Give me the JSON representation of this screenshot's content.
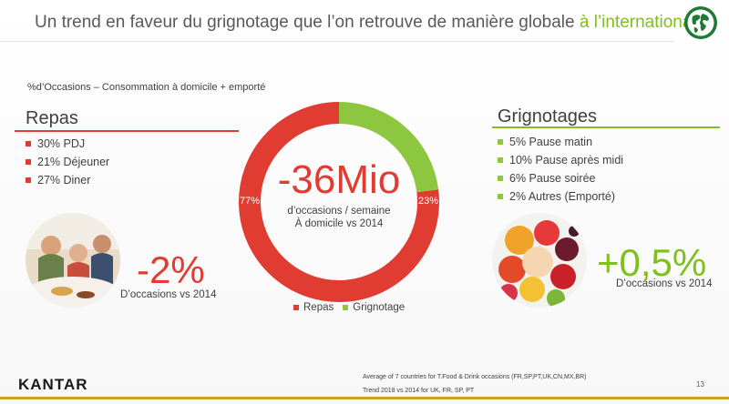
{
  "title": {
    "main": "Un trend en faveur du grignotage que l’on retrouve de manière globale ",
    "highlight": "à l’international",
    "end": " !"
  },
  "subtitle": "%d’Occasions – Consommation à domicile + emporté",
  "repas": {
    "title": "Repas",
    "items": [
      "30% PDJ",
      "21% Déjeuner",
      "27% Diner"
    ],
    "change": "-2%",
    "change_caption": "D’occasions vs 2014"
  },
  "grignotages": {
    "title": "Grignotages",
    "items": [
      "5% Pause matin",
      "10% Pause après midi",
      "6% Pause soirée",
      "2% Autres (Emporté)"
    ],
    "change": "+0,5%",
    "change_caption": "D’occasions vs 2014"
  },
  "center": {
    "value": "-36Mio",
    "line1": "d’occasions / semaine",
    "line2": "À domicile vs 2014"
  },
  "chart_data": {
    "type": "pie",
    "donut": true,
    "categories": [
      "Repas",
      "Grignotage"
    ],
    "values": [
      77,
      23
    ],
    "labels": [
      "77%",
      "23%"
    ],
    "colors": [
      "#e03c31",
      "#8dc63f"
    ],
    "legend": "bottom"
  },
  "footer": {
    "logo": "KANTAR",
    "note1": "Average of 7 countries for T.Food & Drink occasions (FR,SP,PT,UK,CN,MX,BR)",
    "note2": "Trend 2018 vs 2014 for UK, FR, SP, PT",
    "page": "13"
  },
  "icons": {
    "globe": "globe-icon",
    "family_photo": "family-meal-photo",
    "fruit_photo": "fruit-bowl-photo"
  }
}
